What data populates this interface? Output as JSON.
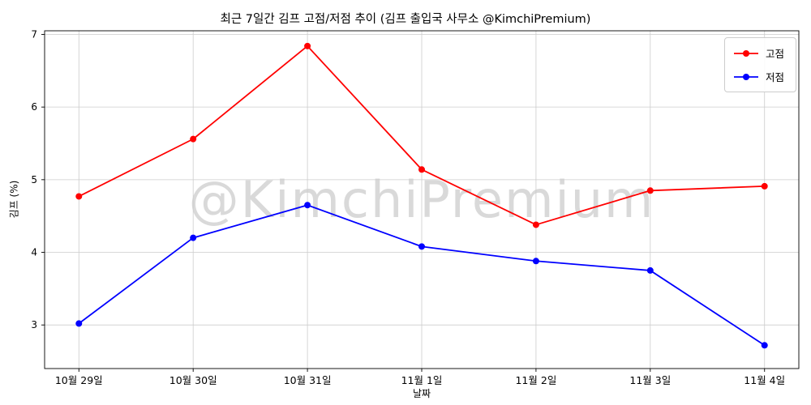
{
  "chart_data": {
    "type": "line",
    "title": "최근 7일간 김프 고점/저점 추이 (김프 출입국 사무소 @KimchiPremium)",
    "xlabel": "날짜",
    "ylabel": "김프 (%)",
    "categories": [
      "10월 29일",
      "10월 30일",
      "10월 31일",
      "11월 1일",
      "11월 2일",
      "11월 3일",
      "11월 4일"
    ],
    "series": [
      {
        "name": "고점",
        "color": "#ff0000",
        "values": [
          4.77,
          5.56,
          6.84,
          5.14,
          4.38,
          4.85,
          4.91
        ]
      },
      {
        "name": "저점",
        "color": "#0000ff",
        "values": [
          3.02,
          4.2,
          4.65,
          4.08,
          3.88,
          3.75,
          2.72
        ]
      }
    ],
    "ylim": [
      2.4,
      7.05
    ],
    "yticks": [
      3,
      4,
      5,
      6,
      7
    ],
    "grid": true,
    "legend_position": "upper right",
    "watermark": "@KimchiPremium",
    "frame_color": "#000000",
    "grid_color": "#cccccc"
  }
}
